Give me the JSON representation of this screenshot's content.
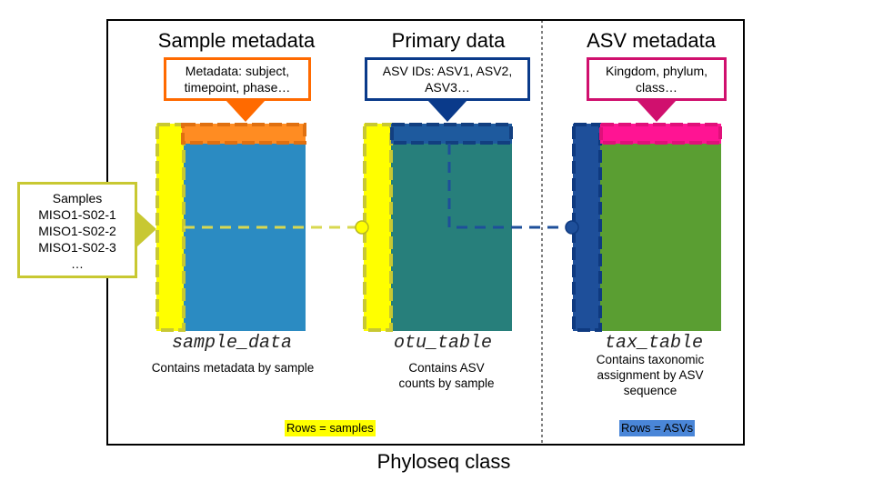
{
  "sections": {
    "sample": {
      "heading": "Sample metadata",
      "callout": "Metadata: subject, timepoint, phase…",
      "table_name": "sample_data",
      "description": "Contains metadata by sample",
      "rows_label": "Rows = samples"
    },
    "primary": {
      "heading": "Primary data",
      "callout": "ASV IDs: ASV1, ASV2, ASV3…",
      "table_name": "otu_table",
      "description": "Contains ASV counts by sample"
    },
    "asv": {
      "heading": "ASV metadata",
      "callout": "Kingdom, phylum, class…",
      "table_name": "tax_table",
      "description": "Contains taxonomic assignment by ASV sequence",
      "rows_label": "Rows = ASVs"
    }
  },
  "samples_callout": {
    "lines": [
      "Samples",
      "MISO1-S02-1",
      "MISO1-S02-2",
      "MISO1-S02-3",
      "…"
    ]
  },
  "footer": "Phyloseq class",
  "colors": {
    "sample_body": "#2b8bc2",
    "otu_body": "#277f7b",
    "tax_body": "#5a9e32",
    "yellow": "#ffff00",
    "orange": "#ff8c22",
    "navy": "#1e4f9a",
    "magenta": "#ff1493",
    "olive": "#c8c832"
  }
}
